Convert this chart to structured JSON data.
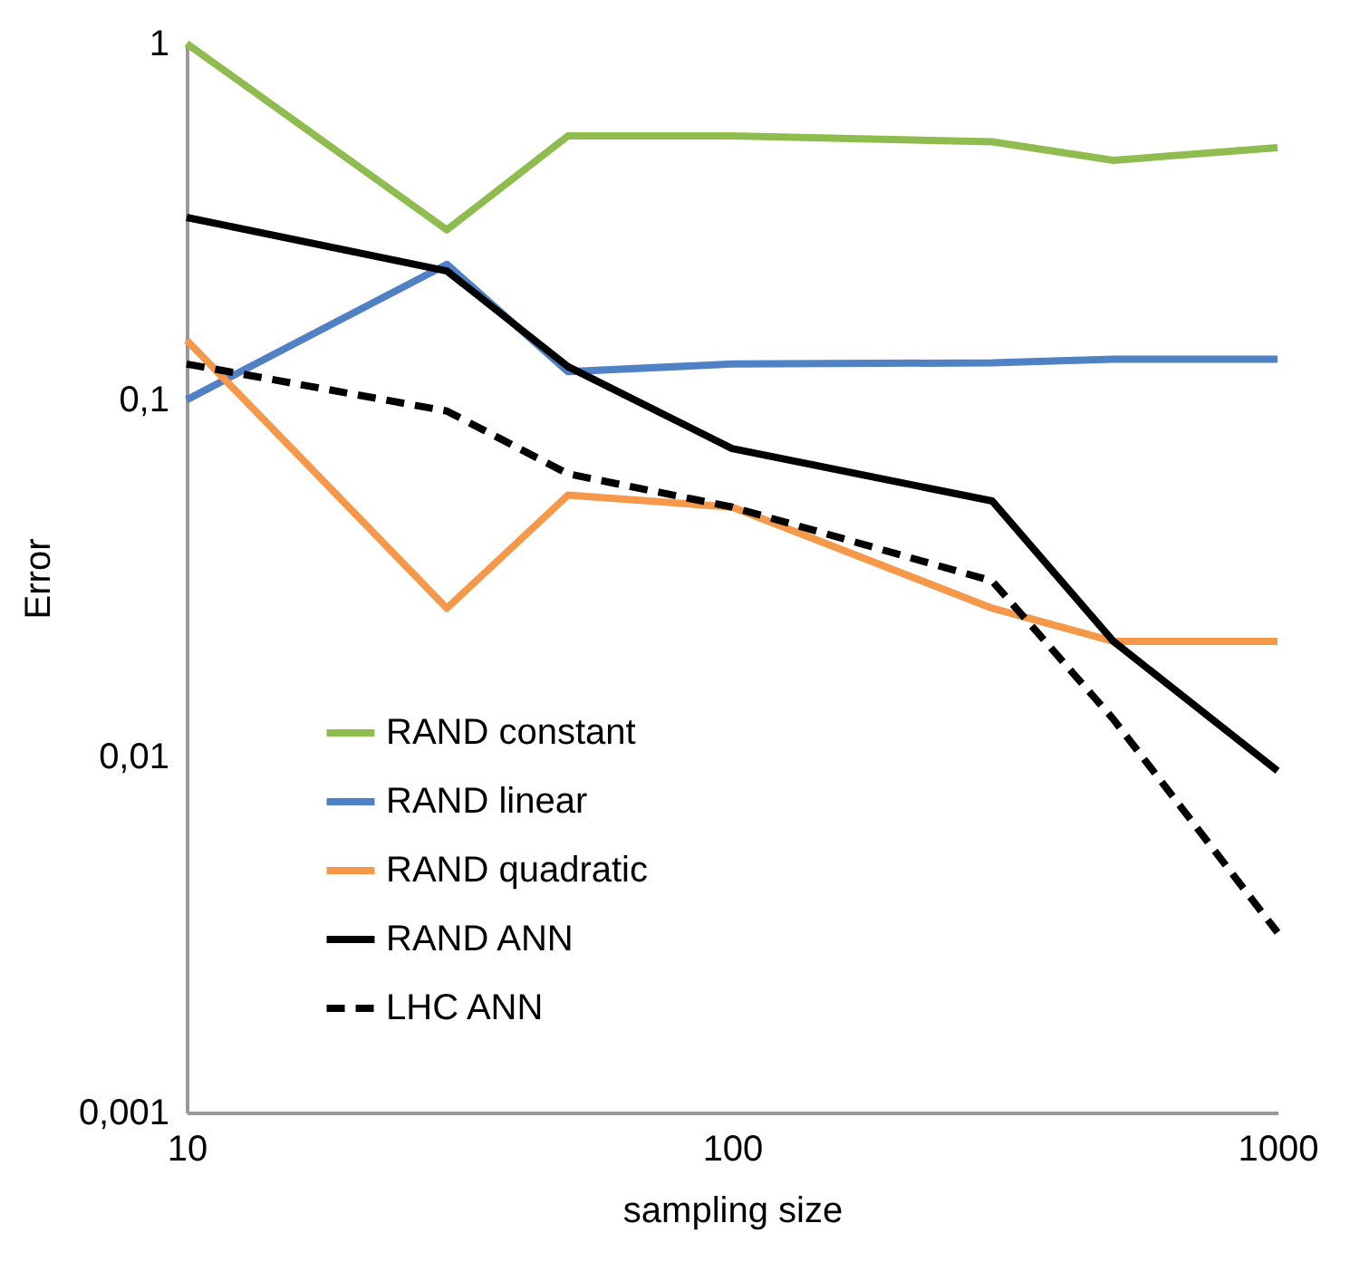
{
  "chart_data": {
    "type": "line",
    "xlabel": "sampling size",
    "ylabel": "Error",
    "log": "xy",
    "grid": false,
    "legend": "bottom left",
    "marker": "none",
    "x": [
      10,
      30,
      50,
      100,
      300,
      500,
      1000
    ],
    "xlim": [
      10,
      1000
    ],
    "xticks": [
      10,
      100,
      1000
    ],
    "ylim": [
      0.001,
      1
    ],
    "yticks": [
      {
        "value": 0.001,
        "label": "0,001"
      },
      {
        "value": 0.01,
        "label": "0,01"
      },
      {
        "value": 0.1,
        "label": "0,1"
      },
      {
        "value": 1,
        "label": "1"
      }
    ],
    "series": [
      {
        "name": "RAND constant",
        "color": "#8fbc4f",
        "line_style": "solid",
        "values": [
          1,
          0.3,
          0.55,
          0.55,
          0.53,
          0.47,
          0.51
        ]
      },
      {
        "name": "RAND linear",
        "color": "#4f81c4",
        "line_style": "solid",
        "values": [
          0.1,
          0.24,
          0.12,
          0.126,
          0.127,
          0.13,
          0.13
        ]
      },
      {
        "name": "RAND quadratic",
        "color": "#f5984a",
        "line_style": "solid",
        "values": [
          0.147,
          0.026,
          0.054,
          0.05,
          0.026,
          0.021,
          0.021
        ]
      },
      {
        "name": "RAND ANN",
        "color": "#000000",
        "line_style": "solid",
        "values": [
          0.325,
          0.23,
          0.124,
          0.073,
          0.052,
          0.021,
          0.0091
        ]
      },
      {
        "name": "LHC ANN",
        "color": "#000000",
        "line_style": "dashed",
        "values": [
          0.126,
          0.093,
          0.062,
          0.05,
          0.031,
          0.0127,
          0.0032
        ]
      }
    ]
  }
}
